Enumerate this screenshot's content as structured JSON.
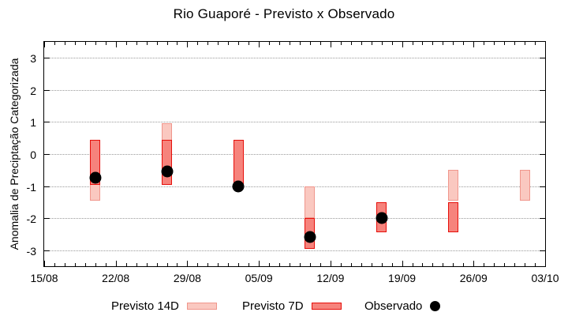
{
  "title": "Rio Guaporé - Previsto x Observado",
  "ylabel": "Anomalia de Preciptação Categorizada",
  "legend": [
    {
      "label": "Previsto 14D",
      "swatch": "box",
      "fill": "#fac8c0",
      "border": "#f0968c"
    },
    {
      "label": "Previsto 7D",
      "swatch": "box",
      "fill": "#f6837c",
      "border": "#e60f0a"
    },
    {
      "label": "Observado",
      "swatch": "dot",
      "fill": "#000000"
    }
  ],
  "chart_data": {
    "type": "bar",
    "title": "Rio Guaporé - Previsto x Observado",
    "xlabel": "",
    "ylabel": "Anomalia de Preciptação Categorizada",
    "ylim": [
      -3.5,
      3.5
    ],
    "yticks": [
      3,
      2,
      1,
      0,
      -1,
      -2,
      -3
    ],
    "xticks": [
      "15/08",
      "22/08",
      "29/08",
      "05/09",
      "12/09",
      "19/09",
      "26/09",
      "03/10"
    ],
    "x_total_days": 49,
    "grid": "horizontal-dotted",
    "legend_position": "bottom",
    "series_names": [
      "Previsto 14D",
      "Previsto 7D",
      "Observado"
    ],
    "points": [
      {
        "date": "20/08",
        "day": 5,
        "previsto14": [
          -1.45,
          0.45
        ],
        "previsto7": [
          -0.95,
          0.45
        ],
        "observado": -0.75
      },
      {
        "date": "27/08",
        "day": 12,
        "previsto14": [
          -0.95,
          0.95
        ],
        "previsto7": [
          -0.95,
          0.45
        ],
        "observado": -0.55
      },
      {
        "date": "03/09",
        "day": 19,
        "previsto14": null,
        "previsto7": [
          -0.95,
          0.45
        ],
        "observado": -1.0
      },
      {
        "date": "10/09",
        "day": 26,
        "previsto14": [
          -2.0,
          -1.0
        ],
        "previsto7": [
          -2.95,
          -2.0
        ],
        "observado": -2.6
      },
      {
        "date": "17/09",
        "day": 33,
        "previsto14": null,
        "previsto7": [
          -2.45,
          -1.5
        ],
        "observado": -2.0
      },
      {
        "date": "24/09",
        "day": 40,
        "previsto14": [
          -1.45,
          -0.5
        ],
        "previsto7": [
          -2.45,
          -1.5
        ],
        "observado": null
      },
      {
        "date": "01/10",
        "day": 47,
        "previsto14": [
          -1.45,
          -0.5
        ],
        "previsto7": null,
        "observado": null
      }
    ],
    "colors": {
      "previsto14_fill": "#fac8c0",
      "previsto14_border": "#f0968c",
      "previsto7_fill": "#f6837c",
      "previsto7_border": "#e60f0a",
      "observado": "#000000",
      "grid": "#9a9a9a",
      "axis": "#000000"
    }
  }
}
